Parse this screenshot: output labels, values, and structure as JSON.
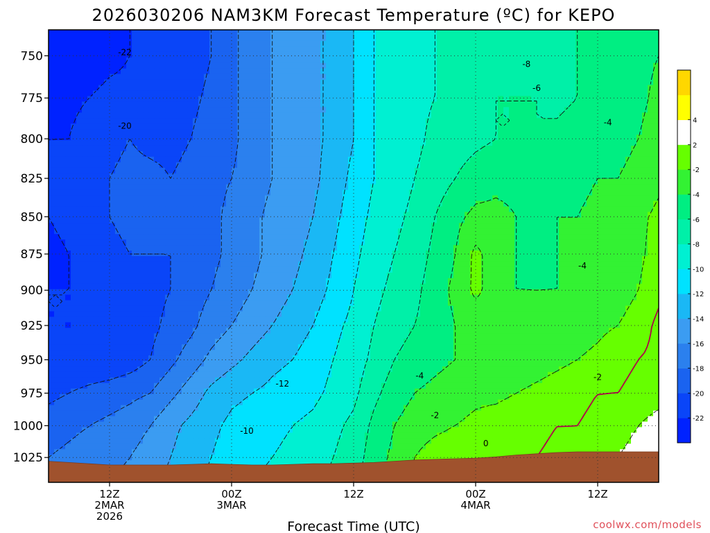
{
  "chart_data": {
    "type": "heatmap",
    "title": "2026030206 NAM3KM Forecast Temperature (ºC) for KEPO",
    "xlabel": "Forecast Time (UTC)",
    "ylabel": "",
    "credit": "coolwx.com/models",
    "y_axis": {
      "scale": "log",
      "inverted": true,
      "ylim": [
        1045,
        735
      ],
      "ticks": [
        750,
        775,
        800,
        825,
        850,
        875,
        900,
        925,
        950,
        975,
        1000,
        1025
      ]
    },
    "x_axis": {
      "xlim_hours": [
        0,
        60
      ],
      "ticks": [
        {
          "hour": 6,
          "lines": [
            "12Z",
            "2MAR",
            "2026"
          ]
        },
        {
          "hour": 18,
          "lines": [
            "00Z",
            "3MAR"
          ]
        },
        {
          "hour": 30,
          "lines": [
            "12Z"
          ]
        },
        {
          "hour": 42,
          "lines": [
            "00Z",
            "4MAR"
          ]
        },
        {
          "hour": 54,
          "lines": [
            "12Z"
          ]
        }
      ]
    },
    "grid": true,
    "grid_style": "dotted",
    "colorbar": {
      "placement": "right",
      "levels": [
        -24,
        -22,
        -20,
        -18,
        -16,
        -14,
        -12,
        -10,
        -8,
        -6,
        -4,
        -2,
        2,
        4,
        6
      ],
      "colors": [
        "#0022ff",
        "#0a45f8",
        "#1a63f0",
        "#2b80ee",
        "#3b9cf2",
        "#1ab8f5",
        "#00e2ff",
        "#00f0d2",
        "#00f0a8",
        "#00ee82",
        "#33f233",
        "#66ff00",
        "#ffffff",
        "#ffff00",
        "#ffd700"
      ],
      "tick_labels": [
        "-22",
        "-20",
        "-18",
        "-16",
        "-14",
        "-12",
        "-10",
        "-8",
        "-6",
        "-4",
        "-2",
        "2",
        "4"
      ]
    },
    "x_hours": [
      0,
      2,
      4,
      6,
      8,
      10,
      12,
      14,
      16,
      18,
      20,
      22,
      24,
      26,
      28,
      30,
      32,
      34,
      36,
      38,
      40,
      42,
      44,
      46,
      48,
      50,
      52,
      54,
      56,
      58,
      60
    ],
    "pressure_levels": [
      735,
      750,
      775,
      800,
      825,
      850,
      875,
      900,
      925,
      950,
      975,
      1000,
      1025,
      1045
    ],
    "temperature_grid": [
      [
        -22,
        -22.5,
        -23,
        -22.5,
        -22,
        -21.5,
        -21.5,
        -21,
        -20,
        -18.5,
        -17,
        -16,
        -15,
        -14.5,
        -13.5,
        -12,
        -10,
        -9,
        -8.5,
        -8,
        -7.5,
        -7,
        -6.5,
        -6.5,
        -6.5,
        -6.5,
        -6,
        -5.5,
        -5,
        -4.5,
        -4
      ],
      [
        -22.5,
        -23,
        -23,
        -22.5,
        -22,
        -21.5,
        -21.5,
        -21,
        -20,
        -18.5,
        -17,
        -16,
        -15,
        -14.5,
        -13.5,
        -12,
        -10,
        -9,
        -8.5,
        -8,
        -7.5,
        -7,
        -6.5,
        -6.5,
        -6.5,
        -6.5,
        -6,
        -5.5,
        -5,
        -4.5,
        -4
      ],
      [
        -22.5,
        -22.5,
        -22,
        -21.5,
        -21.5,
        -21.5,
        -21,
        -20.5,
        -19.5,
        -18.5,
        -17,
        -16,
        -15.5,
        -14.5,
        -13.5,
        -12,
        -10,
        -9,
        -8.5,
        -8,
        -7,
        -6.5,
        -6,
        -6,
        -6,
        -6.5,
        -6,
        -5.5,
        -5,
        -4.5,
        -3.5
      ],
      [
        -22,
        -22,
        -21,
        -20.5,
        -20,
        -20.5,
        -20.5,
        -20,
        -19,
        -18.5,
        -17,
        -16,
        -15.5,
        -14.5,
        -13.5,
        -12,
        -10,
        -9,
        -8.5,
        -7.5,
        -7,
        -6.5,
        -6,
        -6,
        -6,
        -5.5,
        -5,
        -4.5,
        -4.5,
        -4,
        -3
      ],
      [
        -22,
        -21.5,
        -21,
        -20,
        -19.5,
        -19.5,
        -20,
        -19.5,
        -18.5,
        -18,
        -17,
        -16,
        -15.5,
        -14.5,
        -13,
        -11.5,
        -10,
        -9,
        -8,
        -7,
        -6,
        -5,
        -4.5,
        -4.5,
        -5,
        -4.5,
        -4.5,
        -4,
        -4,
        -3.5,
        -2.5
      ],
      [
        -22,
        -21.5,
        -20.5,
        -20,
        -19.5,
        -19.5,
        -20,
        -19.5,
        -18.5,
        -17.5,
        -16.5,
        -15.5,
        -15,
        -14,
        -12.5,
        -11,
        -9.5,
        -8.5,
        -7.5,
        -6,
        -4.5,
        -3.5,
        -3.5,
        -4,
        -4.5,
        -4,
        -4,
        -3.5,
        -3,
        -2.5,
        -1.5
      ],
      [
        -22.5,
        -22,
        -21,
        -20.5,
        -20,
        -20,
        -20,
        -19.5,
        -18.5,
        -17.5,
        -16.5,
        -15.5,
        -14.5,
        -13.5,
        -12,
        -10.5,
        -9,
        -8,
        -7,
        -5.5,
        -4,
        -1.5,
        -3,
        -4,
        -4.5,
        -4,
        -4,
        -3.5,
        -3,
        -2.5,
        -1
      ],
      [
        -22,
        -22,
        -21.5,
        -21,
        -20.5,
        -20.5,
        -20,
        -19,
        -18,
        -17,
        -16,
        -15,
        -14,
        -13,
        -11.5,
        -10,
        -8.5,
        -7.5,
        -6.5,
        -5,
        -3.5,
        -1.5,
        -3,
        -4,
        -4,
        -4,
        -4,
        -3.5,
        -3,
        -2,
        -0.5
      ],
      [
        -22,
        -22,
        -21.5,
        -21.5,
        -21,
        -20.5,
        -19.5,
        -18.5,
        -17,
        -16,
        -15,
        -14,
        -13,
        -12,
        -10.5,
        -9.5,
        -8,
        -7,
        -6,
        -5,
        -4,
        -3.5,
        -3.5,
        -3.5,
        -3.5,
        -3.5,
        -3,
        -2.5,
        -2,
        -1,
        0.5
      ],
      [
        -21.5,
        -21.5,
        -21.5,
        -21.5,
        -21,
        -20,
        -18.5,
        -17,
        -15.5,
        -14.5,
        -13.5,
        -12.5,
        -12,
        -11,
        -10,
        -9,
        -7.5,
        -6,
        -5,
        -4.5,
        -4,
        -4,
        -3.5,
        -3.5,
        -3,
        -2.5,
        -2,
        -1.5,
        -0.5,
        0,
        0.5
      ],
      [
        -20.5,
        -20,
        -19.5,
        -19,
        -18.5,
        -18,
        -16.5,
        -15,
        -13.5,
        -12.5,
        -12,
        -11.5,
        -11,
        -10.5,
        -9.5,
        -8.5,
        -6.5,
        -5,
        -4,
        -3.5,
        -3,
        -2.5,
        -2.5,
        -2,
        -1.5,
        -1,
        -0.5,
        0,
        0,
        0.5,
        1
      ],
      [
        -19,
        -18.5,
        -18,
        -17.5,
        -17,
        -16,
        -14.5,
        -13.5,
        -12.5,
        -11.5,
        -11,
        -10.5,
        -10,
        -9.5,
        -8.5,
        -7.5,
        -5.5,
        -4,
        -3,
        -2.5,
        -2,
        -1.5,
        -1,
        -0.5,
        -0.5,
        0,
        0,
        0.5,
        1,
        2,
        3
      ],
      [
        -18,
        -17.5,
        -17,
        -16.5,
        -16,
        -15,
        -14,
        -13,
        -12,
        -11,
        -10.5,
        -10,
        -9.5,
        -9,
        -8,
        -7,
        -5,
        -3.5,
        -2,
        -1,
        -0.5,
        -0.5,
        0,
        0,
        0,
        0.5,
        0.5,
        1,
        2,
        3,
        4
      ],
      [
        -17.5,
        -17,
        -16.5,
        -16,
        -15.5,
        -14.5,
        -13.5,
        -12.5,
        -11.5,
        -10.5,
        -10,
        -9.5,
        -9,
        -8.5,
        -7.5,
        -6.5,
        -4.5,
        -3,
        -1.5,
        -0.5,
        0,
        0,
        0.5,
        0.5,
        0.5,
        1,
        1,
        1.5,
        2.5,
        3.5,
        4.5
      ]
    ],
    "terrain_surface_hpa": [
      1028,
      1029,
      1030,
      1031,
      1031,
      1031,
      1031,
      1030.5,
      1030,
      1030.5,
      1031,
      1031,
      1030.5,
      1030,
      1030,
      1029.5,
      1029,
      1028,
      1027,
      1026.5,
      1026,
      1025.5,
      1024.5,
      1023,
      1022,
      1021,
      1020.5,
      1020.5,
      1020.5,
      1020.5,
      1020.5
    ],
    "contour_labels": [
      {
        "text": "-22",
        "hour": 7.5,
        "p": 748
      },
      {
        "text": "-20",
        "hour": 7.5,
        "p": 792
      },
      {
        "text": "-12",
        "hour": 23,
        "p": 968
      },
      {
        "text": "-10",
        "hour": 19.5,
        "p": 1004
      },
      {
        "text": "-8",
        "hour": 47,
        "p": 755
      },
      {
        "text": "-6",
        "hour": 48,
        "p": 769
      },
      {
        "text": "-4",
        "hour": 55,
        "p": 790
      },
      {
        "text": "-4",
        "hour": 52.5,
        "p": 883
      },
      {
        "text": "-4",
        "hour": 36.5,
        "p": 962
      },
      {
        "text": "-2",
        "hour": 38,
        "p": 992
      },
      {
        "text": "-2",
        "hour": 54,
        "p": 963
      },
      {
        "text": "0",
        "hour": 43,
        "p": 1014
      }
    ]
  }
}
